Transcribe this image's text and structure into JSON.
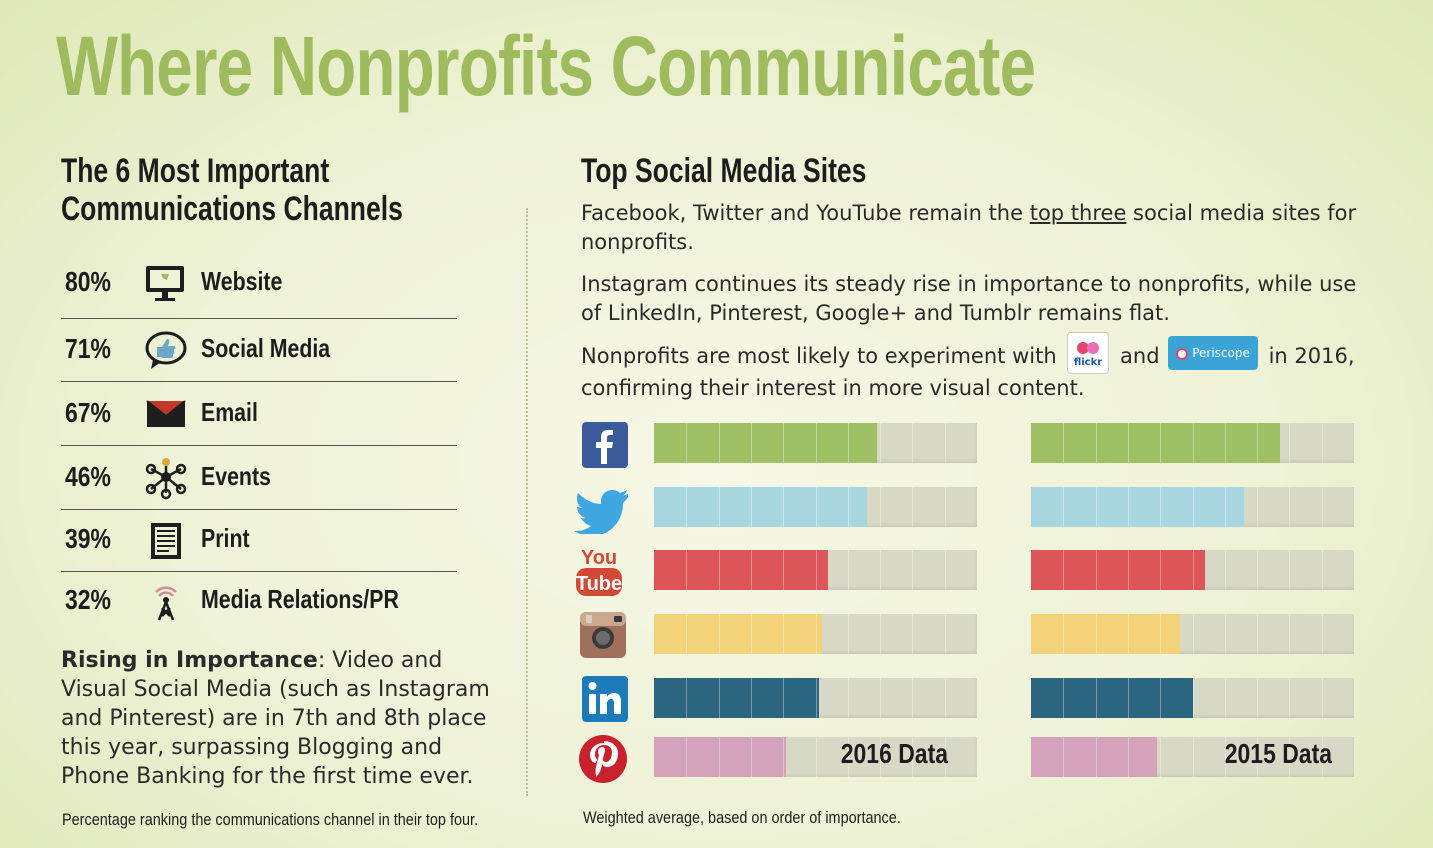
{
  "title": "Where Nonprofits Communicate",
  "left": {
    "heading_line1": "The 6 Most Important",
    "heading_line2": "Communications Channels",
    "channels": [
      {
        "pct": "80%",
        "label": "Website",
        "icon": "monitor-icon"
      },
      {
        "pct": "71%",
        "label": "Social Media",
        "icon": "speech-bubble-thumbs-up-icon"
      },
      {
        "pct": "67%",
        "label": "Email",
        "icon": "envelope-icon"
      },
      {
        "pct": "46%",
        "label": "Events",
        "icon": "network-icon"
      },
      {
        "pct": "39%",
        "label": "Print",
        "icon": "document-icon"
      },
      {
        "pct": "32%",
        "label": "Media Relations/PR",
        "icon": "broadcast-tower-icon"
      }
    ],
    "rising_bold": "Rising in Importance",
    "rising_text": ": Video and Visual Social Media (such as Instagram and Pinterest) are in 7th and 8th place this year, surpassing Blogging and Phone Banking for the first time ever.",
    "footnote": "Percentage ranking the communications channel in their top four."
  },
  "right": {
    "heading": "Top Social Media Sites",
    "para1_a": "Facebook, Twitter and YouTube remain the ",
    "para1_u": "top three",
    "para1_b": " social media sites for nonprofits.",
    "para2": "Instagram continues its steady rise in importance to nonprofits, while use of LinkedIn, Pinterest, Google+ and Tumblr remains flat.",
    "para3_a": "Nonprofits are most likely to experiment with",
    "para3_and": "and",
    "para3_b": "in 2016,",
    "para3_c": "confirming their interest in more visual content.",
    "flickr_badge": "flickr",
    "periscope_badge": "Periscope",
    "footnote": "Weighted average, based on order of importance."
  },
  "chart_data": {
    "type": "bar",
    "categories": [
      "Facebook",
      "Twitter",
      "YouTube",
      "Instagram",
      "LinkedIn",
      "Pinterest"
    ],
    "icons": [
      "facebook-icon",
      "twitter-icon",
      "youtube-icon",
      "instagram-icon",
      "linkedin-icon",
      "pinterest-icon"
    ],
    "colors": [
      "#9fc065",
      "#a8d6e0",
      "#dc5558",
      "#f4d27a",
      "#2b6580",
      "#d4a3bb"
    ],
    "series": [
      {
        "name": "2016 Data",
        "values": [
          6.9,
          6.6,
          5.4,
          5.2,
          5.1,
          4.1
        ]
      },
      {
        "name": "2015 Data",
        "values": [
          7.7,
          6.6,
          5.4,
          4.6,
          5.0,
          3.9
        ]
      }
    ],
    "ylim": [
      0,
      10
    ],
    "grid": true
  }
}
